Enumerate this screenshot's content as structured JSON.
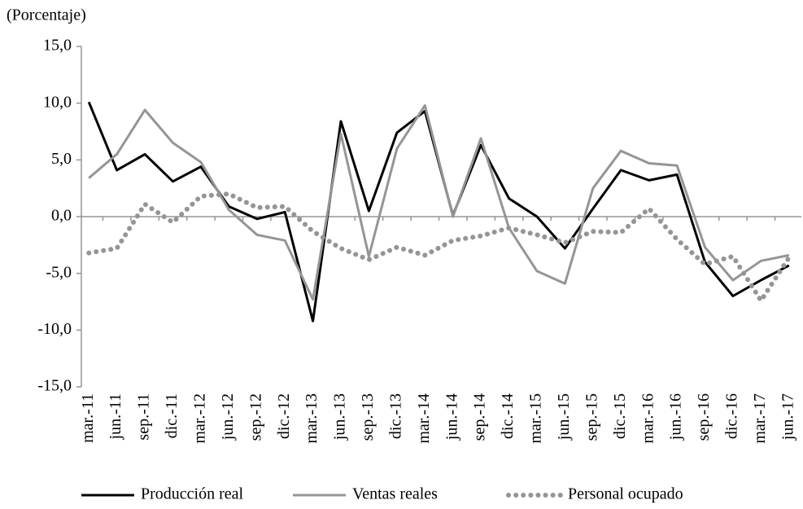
{
  "chart_data": {
    "type": "line",
    "subtitle": "(Porcentaje)",
    "categories": [
      "mar.-11",
      "jun.-11",
      "sep.-11",
      "dic.-11",
      "mar.-12",
      "jun.-12",
      "sep.-12",
      "dic.-12",
      "mar.-13",
      "jun.-13",
      "sep.-13",
      "dic.-13",
      "mar.-14",
      "jun.-14",
      "sep.-14",
      "dic.-14",
      "mar.-15",
      "jun.-15",
      "sep.-15",
      "dic.-15",
      "mar.-16",
      "jun.-16",
      "sep.-16",
      "dic.-16",
      "mar.-17",
      "jun.-17"
    ],
    "series": [
      {
        "name": "Producción real",
        "color": "#000000",
        "style": "solid",
        "values": [
          10.1,
          4.1,
          5.5,
          3.1,
          4.4,
          0.9,
          -0.2,
          0.4,
          -9.2,
          8.4,
          0.5,
          7.4,
          9.3,
          0.1,
          6.3,
          1.6,
          0.0,
          -2.8,
          0.7,
          4.1,
          3.2,
          3.7,
          -4.0,
          -7.0,
          -5.6,
          -4.3
        ]
      },
      {
        "name": "Ventas reales",
        "color": "#959595",
        "style": "solid",
        "values": [
          3.4,
          5.5,
          9.4,
          6.5,
          4.8,
          0.6,
          -1.6,
          -2.1,
          -7.3,
          7.3,
          -3.5,
          6.0,
          9.8,
          0.0,
          6.9,
          -1.0,
          -4.8,
          -5.9,
          2.5,
          5.8,
          4.7,
          4.5,
          -2.7,
          -5.6,
          -3.9,
          -3.4
        ]
      },
      {
        "name": "Personal ocupado",
        "color": "#959595",
        "style": "dotted",
        "values": [
          -3.2,
          -2.8,
          1.1,
          -0.5,
          1.8,
          2.0,
          0.8,
          0.9,
          -1.3,
          -2.8,
          -3.8,
          -2.7,
          -3.4,
          -2.1,
          -1.7,
          -1.0,
          -1.6,
          -2.3,
          -1.3,
          -1.4,
          0.7,
          -2.0,
          -4.2,
          -3.5,
          -7.4,
          -3.6
        ]
      }
    ],
    "ylim": [
      -15,
      15
    ],
    "yticks": [
      {
        "value": -15,
        "label": "-15,0"
      },
      {
        "value": -10,
        "label": "-10,0"
      },
      {
        "value": -5,
        "label": "-5,0"
      },
      {
        "value": 0,
        "label": "0,0"
      },
      {
        "value": 5,
        "label": "5,0"
      },
      {
        "value": 10,
        "label": "10,0"
      },
      {
        "value": 15,
        "label": "15,0"
      }
    ],
    "legend": "bottom"
  }
}
